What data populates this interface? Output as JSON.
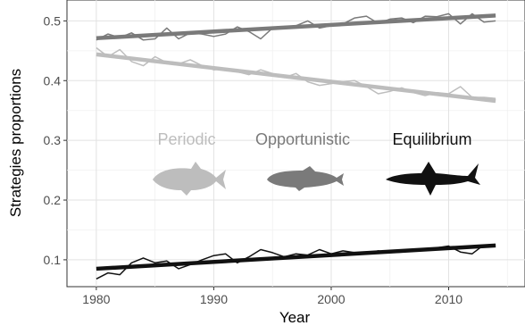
{
  "chart_data": {
    "type": "line",
    "title": "",
    "xlabel": "Year",
    "ylabel": "Strategies proportions",
    "xlim": [
      1977.5,
      2016.5
    ],
    "ylim": [
      0.055,
      0.535
    ],
    "x_ticks": [
      1980,
      1990,
      2000,
      2010
    ],
    "y_ticks": [
      0.1,
      0.2,
      0.3,
      0.4,
      0.5
    ],
    "x_tick_labels": [
      "1980",
      "1990",
      "2000",
      "2010"
    ],
    "y_tick_labels": [
      "0.1",
      "0.2",
      "0.3",
      "0.4",
      "0.5"
    ],
    "grid": true,
    "legend_position": "inline-center",
    "x": [
      1980,
      1981,
      1982,
      1983,
      1984,
      1985,
      1986,
      1987,
      1988,
      1989,
      1990,
      1991,
      1992,
      1993,
      1994,
      1995,
      1996,
      1997,
      1998,
      1999,
      2000,
      2001,
      2002,
      2003,
      2004,
      2005,
      2006,
      2007,
      2008,
      2009,
      2010,
      2011,
      2012,
      2013,
      2014
    ],
    "series": [
      {
        "name": "Periodic",
        "color": "#bdbdbd",
        "icon": "cod-fish-icon",
        "values": [
          0.455,
          0.44,
          0.452,
          0.432,
          0.425,
          0.44,
          0.43,
          0.428,
          0.435,
          0.425,
          0.418,
          0.42,
          0.415,
          0.41,
          0.418,
          0.412,
          0.405,
          0.412,
          0.398,
          0.392,
          0.395,
          0.398,
          0.4,
          0.39,
          0.378,
          0.382,
          0.388,
          0.38,
          0.375,
          0.38,
          0.378,
          0.39,
          0.372,
          0.372,
          0.37
        ],
        "trend": [
          0.444,
          0.366
        ]
      },
      {
        "name": "Opportunistic",
        "color": "#7a7a7a",
        "icon": "fish-icon",
        "values": [
          0.468,
          0.478,
          0.472,
          0.48,
          0.468,
          0.47,
          0.488,
          0.47,
          0.48,
          0.478,
          0.474,
          0.478,
          0.49,
          0.482,
          0.47,
          0.488,
          0.49,
          0.492,
          0.5,
          0.488,
          0.492,
          0.495,
          0.505,
          0.508,
          0.496,
          0.503,
          0.505,
          0.497,
          0.508,
          0.507,
          0.512,
          0.495,
          0.512,
          0.498,
          0.5
        ],
        "trend": [
          0.471,
          0.509
        ]
      },
      {
        "name": "Equilibrium",
        "color": "#111111",
        "icon": "shark-icon",
        "values": [
          0.068,
          0.078,
          0.075,
          0.095,
          0.103,
          0.095,
          0.098,
          0.085,
          0.092,
          0.1,
          0.107,
          0.11,
          0.095,
          0.105,
          0.117,
          0.112,
          0.105,
          0.11,
          0.108,
          0.117,
          0.11,
          0.115,
          0.112,
          0.11,
          0.115,
          0.112,
          0.113,
          0.115,
          0.117,
          0.12,
          0.123,
          0.113,
          0.11,
          0.125,
          0.125
        ],
        "trend": [
          0.085,
          0.124
        ]
      }
    ]
  }
}
